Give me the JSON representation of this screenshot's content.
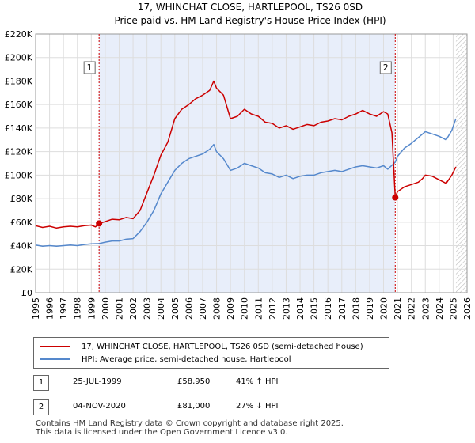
{
  "chart_data": {
    "type": "line",
    "title": "17, WHINCHAT CLOSE, HARTLEPOOL, TS26 0SD",
    "subtitle": "Price paid vs. HM Land Registry's House Price Index (HPI)",
    "xlim": [
      1995,
      2026
    ],
    "ylim": [
      0,
      220000
    ],
    "x_ticks": [
      "1995",
      "1996",
      "1997",
      "1998",
      "1999",
      "2000",
      "2001",
      "2002",
      "2003",
      "2004",
      "2005",
      "2006",
      "2007",
      "2008",
      "2009",
      "2010",
      "2011",
      "2012",
      "2013",
      "2014",
      "2015",
      "2016",
      "2017",
      "2018",
      "2019",
      "2020",
      "2021",
      "2022",
      "2023",
      "2024",
      "2025",
      "2026"
    ],
    "y_ticks": [
      {
        "value": 0,
        "label": "£0"
      },
      {
        "value": 20000,
        "label": "£20K"
      },
      {
        "value": 40000,
        "label": "£40K"
      },
      {
        "value": 60000,
        "label": "£60K"
      },
      {
        "value": 80000,
        "label": "£80K"
      },
      {
        "value": 100000,
        "label": "£100K"
      },
      {
        "value": 120000,
        "label": "£120K"
      },
      {
        "value": 140000,
        "label": "£140K"
      },
      {
        "value": 160000,
        "label": "£160K"
      },
      {
        "value": 180000,
        "label": "£180K"
      },
      {
        "value": 200000,
        "label": "£200K"
      },
      {
        "value": 220000,
        "label": "£220K"
      }
    ],
    "shaded_period": [
      1999.56,
      2020.84
    ],
    "future_from": 2025.2,
    "series": [
      {
        "name": "17, WHINCHAT CLOSE, HARTLEPOOL, TS26 0SD (semi-detached house)",
        "color": "#cc0000",
        "points": [
          [
            1995.0,
            57000
          ],
          [
            1995.5,
            55500
          ],
          [
            1996.0,
            56500
          ],
          [
            1996.5,
            55000
          ],
          [
            1997.0,
            56000
          ],
          [
            1997.5,
            56500
          ],
          [
            1998.0,
            56000
          ],
          [
            1998.5,
            57000
          ],
          [
            1999.0,
            57500
          ],
          [
            1999.3,
            56000
          ],
          [
            1999.56,
            58950
          ],
          [
            2000.0,
            60500
          ],
          [
            2000.5,
            62500
          ],
          [
            2001.0,
            62000
          ],
          [
            2001.5,
            64000
          ],
          [
            2002.0,
            63000
          ],
          [
            2002.5,
            70000
          ],
          [
            2003.0,
            85000
          ],
          [
            2003.5,
            100000
          ],
          [
            2004.0,
            117000
          ],
          [
            2004.5,
            128000
          ],
          [
            2005.0,
            148000
          ],
          [
            2005.5,
            156000
          ],
          [
            2006.0,
            160000
          ],
          [
            2006.5,
            165000
          ],
          [
            2007.0,
            168000
          ],
          [
            2007.5,
            172000
          ],
          [
            2007.8,
            180000
          ],
          [
            2008.0,
            174000
          ],
          [
            2008.5,
            168000
          ],
          [
            2008.8,
            156000
          ],
          [
            2009.0,
            148000
          ],
          [
            2009.5,
            150000
          ],
          [
            2010.0,
            156000
          ],
          [
            2010.5,
            152000
          ],
          [
            2011.0,
            150000
          ],
          [
            2011.5,
            145000
          ],
          [
            2012.0,
            144000
          ],
          [
            2012.5,
            140000
          ],
          [
            2013.0,
            142000
          ],
          [
            2013.5,
            139000
          ],
          [
            2014.0,
            141000
          ],
          [
            2014.5,
            143000
          ],
          [
            2015.0,
            142000
          ],
          [
            2015.5,
            145000
          ],
          [
            2016.0,
            146000
          ],
          [
            2016.5,
            148000
          ],
          [
            2017.0,
            147000
          ],
          [
            2017.5,
            150000
          ],
          [
            2018.0,
            152000
          ],
          [
            2018.5,
            155000
          ],
          [
            2019.0,
            152000
          ],
          [
            2019.5,
            150000
          ],
          [
            2020.0,
            154000
          ],
          [
            2020.3,
            152000
          ],
          [
            2020.6,
            136000
          ],
          [
            2020.84,
            81000
          ],
          [
            2021.0,
            86000
          ],
          [
            2021.5,
            90000
          ],
          [
            2022.0,
            92000
          ],
          [
            2022.5,
            94000
          ],
          [
            2022.8,
            97000
          ],
          [
            2023.0,
            100000
          ],
          [
            2023.5,
            99000
          ],
          [
            2024.0,
            96000
          ],
          [
            2024.5,
            93000
          ],
          [
            2024.9,
            100000
          ],
          [
            2025.2,
            107000
          ]
        ]
      },
      {
        "name": "HPI: Average price, semi-detached house, Hartlepool",
        "color": "#5588cc",
        "points": [
          [
            1995.0,
            40500
          ],
          [
            1995.5,
            39500
          ],
          [
            1996.0,
            40000
          ],
          [
            1996.5,
            39500
          ],
          [
            1997.0,
            40000
          ],
          [
            1997.5,
            40500
          ],
          [
            1998.0,
            40000
          ],
          [
            1998.5,
            41000
          ],
          [
            1999.0,
            41500
          ],
          [
            1999.56,
            41800
          ],
          [
            2000.0,
            43000
          ],
          [
            2000.5,
            44000
          ],
          [
            2001.0,
            44000
          ],
          [
            2001.5,
            45500
          ],
          [
            2002.0,
            46000
          ],
          [
            2002.5,
            52000
          ],
          [
            2003.0,
            60000
          ],
          [
            2003.5,
            70000
          ],
          [
            2004.0,
            84000
          ],
          [
            2004.5,
            94000
          ],
          [
            2005.0,
            104000
          ],
          [
            2005.5,
            110000
          ],
          [
            2006.0,
            114000
          ],
          [
            2006.5,
            116000
          ],
          [
            2007.0,
            118000
          ],
          [
            2007.5,
            122000
          ],
          [
            2007.8,
            126000
          ],
          [
            2008.0,
            120000
          ],
          [
            2008.5,
            114000
          ],
          [
            2008.8,
            108000
          ],
          [
            2009.0,
            104000
          ],
          [
            2009.5,
            106000
          ],
          [
            2010.0,
            110000
          ],
          [
            2010.5,
            108000
          ],
          [
            2011.0,
            106000
          ],
          [
            2011.5,
            102000
          ],
          [
            2012.0,
            101000
          ],
          [
            2012.5,
            98000
          ],
          [
            2013.0,
            100000
          ],
          [
            2013.5,
            97000
          ],
          [
            2014.0,
            99000
          ],
          [
            2014.5,
            100000
          ],
          [
            2015.0,
            100000
          ],
          [
            2015.5,
            102000
          ],
          [
            2016.0,
            103000
          ],
          [
            2016.5,
            104000
          ],
          [
            2017.0,
            103000
          ],
          [
            2017.5,
            105000
          ],
          [
            2018.0,
            107000
          ],
          [
            2018.5,
            108000
          ],
          [
            2019.0,
            107000
          ],
          [
            2019.5,
            106000
          ],
          [
            2020.0,
            108000
          ],
          [
            2020.3,
            105000
          ],
          [
            2020.84,
            111000
          ],
          [
            2021.0,
            116000
          ],
          [
            2021.5,
            123000
          ],
          [
            2022.0,
            127000
          ],
          [
            2022.5,
            132000
          ],
          [
            2023.0,
            137000
          ],
          [
            2023.5,
            135000
          ],
          [
            2024.0,
            133000
          ],
          [
            2024.5,
            130000
          ],
          [
            2024.9,
            138000
          ],
          [
            2025.2,
            148000
          ]
        ]
      }
    ],
    "sales": [
      {
        "marker": "1",
        "x": 1999.56,
        "value": 58950,
        "date": "25-JUL-1999",
        "price": "£58,950",
        "hpi": "41% ↑ HPI"
      },
      {
        "marker": "2",
        "x": 2020.84,
        "value": 81000,
        "date": "04-NOV-2020",
        "price": "£81,000",
        "hpi": "27% ↓ HPI"
      }
    ],
    "footer": [
      "Contains HM Land Registry data © Crown copyright and database right 2025.",
      "This data is licensed under the Open Government Licence v3.0."
    ]
  }
}
